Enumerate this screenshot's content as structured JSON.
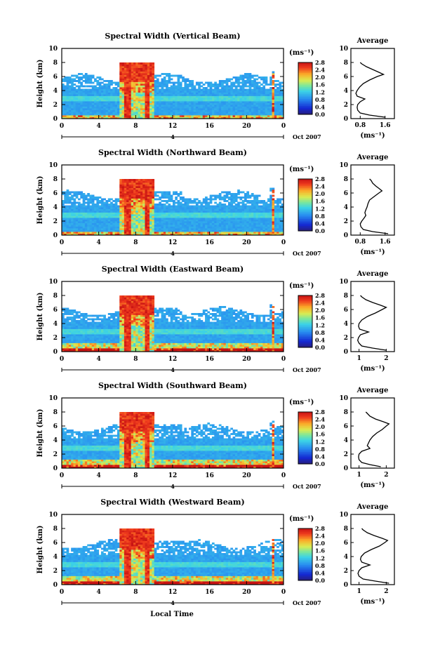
{
  "figure": {
    "x_axis_label": "Local Time",
    "date_label": "Oct 2007",
    "day_marker": "4",
    "avg_title": "Average",
    "cbar_unit": "(ms⁻¹)",
    "avg_unit": "(ms⁻¹)"
  },
  "chart_data": [
    {
      "type": "heatmap",
      "title": "Spectral Width (Vertical Beam)",
      "ylabel": "Height (km)",
      "xlabel": "Local Time",
      "x_ticks": [
        "0",
        "4",
        "8",
        "12",
        "16",
        "20",
        "0"
      ],
      "y_ticks": [
        "0",
        "2",
        "4",
        "6",
        "8",
        "10"
      ],
      "xlim": [
        0,
        24
      ],
      "ylim": [
        0,
        10
      ],
      "colorbar": {
        "label": "(ms⁻¹)",
        "ticks": [
          "0.0",
          "0.4",
          "0.8",
          "1.2",
          "1.6",
          "2.0",
          "2.4",
          "2.8"
        ],
        "range": [
          0,
          2.8
        ]
      },
      "average_profile": {
        "title": "Average",
        "xlabel": "(ms⁻¹)",
        "xticks": [
          "0.8",
          "1.6"
        ],
        "xlim": [
          0.5,
          1.9
        ],
        "ylim": [
          0,
          10
        ],
        "height": [
          0.2,
          0.5,
          0.8,
          1.2,
          1.6,
          2.0,
          2.4,
          2.8,
          3.2,
          3.6,
          4.0,
          4.5,
          5.0,
          5.5,
          6.0,
          6.3,
          6.6,
          7.0,
          7.4,
          7.8,
          8.0
        ],
        "value": [
          1.6,
          1.1,
          0.8,
          0.72,
          0.7,
          0.72,
          0.8,
          0.95,
          0.7,
          0.66,
          0.7,
          0.78,
          0.9,
          1.1,
          1.35,
          1.55,
          1.4,
          1.2,
          1.0,
          0.85,
          0.8
        ]
      }
    },
    {
      "type": "heatmap",
      "title": "Spectral Width (Northward Beam)",
      "ylabel": "Height (km)",
      "xlabel": "Local Time",
      "x_ticks": [
        "0",
        "4",
        "8",
        "12",
        "16",
        "20",
        "0"
      ],
      "y_ticks": [
        "0",
        "2",
        "4",
        "6",
        "8",
        "10"
      ],
      "xlim": [
        0,
        24
      ],
      "ylim": [
        0,
        10
      ],
      "colorbar": {
        "label": "(ms⁻¹)",
        "ticks": [
          "0.0",
          "0.4",
          "0.8",
          "1.2",
          "1.6",
          "2.0",
          "2.4",
          "2.8"
        ],
        "range": [
          0,
          2.8
        ]
      },
      "average_profile": {
        "title": "Average",
        "xlabel": "(ms⁻¹)",
        "xticks": [
          "0.8",
          "1.6"
        ],
        "xlim": [
          0.5,
          1.9
        ],
        "ylim": [
          0,
          10
        ],
        "height": [
          0.2,
          0.5,
          0.8,
          1.2,
          1.6,
          2.0,
          2.4,
          2.8,
          3.2,
          3.6,
          4.0,
          4.5,
          5.0,
          5.5,
          6.0,
          6.3,
          6.6,
          7.0,
          7.4,
          7.8,
          8.0
        ],
        "value": [
          1.7,
          1.2,
          0.9,
          0.82,
          0.8,
          0.85,
          0.92,
          0.98,
          0.95,
          0.98,
          1.02,
          1.05,
          1.1,
          1.25,
          1.4,
          1.5,
          1.42,
          1.3,
          1.2,
          1.15,
          1.1
        ]
      }
    },
    {
      "type": "heatmap",
      "title": "Spectral Width (Eastward Beam)",
      "ylabel": "Height (km)",
      "xlabel": "Local Time",
      "x_ticks": [
        "0",
        "4",
        "8",
        "12",
        "16",
        "20",
        "0"
      ],
      "y_ticks": [
        "0",
        "2",
        "4",
        "6",
        "8",
        "10"
      ],
      "xlim": [
        0,
        24
      ],
      "ylim": [
        0,
        10
      ],
      "colorbar": {
        "label": "(ms⁻¹)",
        "ticks": [
          "0.0",
          "0.4",
          "0.8",
          "1.2",
          "1.6",
          "2.0",
          "2.4",
          "2.8"
        ],
        "range": [
          0,
          2.8
        ]
      },
      "average_profile": {
        "title": "Average",
        "xlabel": "(ms⁻¹)",
        "xticks": [
          "1",
          "2"
        ],
        "xlim": [
          0.7,
          2.3
        ],
        "ylim": [
          0,
          10
        ],
        "height": [
          0.2,
          0.5,
          0.8,
          1.2,
          1.6,
          2.0,
          2.4,
          2.8,
          3.2,
          3.6,
          4.0,
          4.5,
          5.0,
          5.5,
          6.0,
          6.3,
          6.6,
          7.0,
          7.4,
          7.8,
          8.0
        ],
        "value": [
          2.0,
          1.5,
          1.1,
          1.0,
          0.95,
          0.98,
          1.05,
          1.35,
          1.02,
          0.98,
          1.0,
          1.1,
          1.3,
          1.6,
          1.85,
          2.0,
          1.8,
          1.5,
          1.25,
          1.1,
          1.05
        ]
      }
    },
    {
      "type": "heatmap",
      "title": "Spectral Width (Southward Beam)",
      "ylabel": "Height (km)",
      "xlabel": "Local Time",
      "x_ticks": [
        "0",
        "4",
        "8",
        "12",
        "16",
        "20",
        "0"
      ],
      "y_ticks": [
        "0",
        "2",
        "4",
        "6",
        "8",
        "10"
      ],
      "xlim": [
        0,
        24
      ],
      "ylim": [
        0,
        10
      ],
      "colorbar": {
        "label": "(ms⁻¹)",
        "ticks": [
          "0.0",
          "0.4",
          "0.8",
          "1.2",
          "1.6",
          "2.0",
          "2.4",
          "2.8"
        ],
        "range": [
          0,
          2.8
        ]
      },
      "average_profile": {
        "title": "Average",
        "xlabel": "(ms⁻¹)",
        "xticks": [
          "1",
          "2"
        ],
        "xlim": [
          0.7,
          2.3
        ],
        "ylim": [
          0,
          10
        ],
        "height": [
          0.2,
          0.5,
          0.8,
          1.2,
          1.6,
          2.0,
          2.4,
          2.8,
          3.2,
          3.6,
          4.0,
          4.5,
          5.0,
          5.5,
          6.0,
          6.3,
          6.6,
          7.0,
          7.4,
          7.8,
          8.0
        ],
        "value": [
          1.8,
          1.4,
          1.1,
          1.0,
          0.98,
          1.0,
          1.1,
          1.4,
          1.3,
          1.35,
          1.4,
          1.5,
          1.65,
          1.85,
          2.0,
          2.1,
          1.9,
          1.6,
          1.4,
          1.3,
          1.25
        ]
      }
    },
    {
      "type": "heatmap",
      "title": "Spectral Width (Westward Beam)",
      "ylabel": "Height (km)",
      "xlabel": "Local Time",
      "x_ticks": [
        "0",
        "4",
        "8",
        "12",
        "16",
        "20",
        "0"
      ],
      "y_ticks": [
        "0",
        "2",
        "4",
        "6",
        "8",
        "10"
      ],
      "xlim": [
        0,
        24
      ],
      "ylim": [
        0,
        10
      ],
      "colorbar": {
        "label": "(ms⁻¹)",
        "ticks": [
          "0.0",
          "0.4",
          "0.8",
          "1.2",
          "1.6",
          "2.0",
          "2.4",
          "2.8"
        ],
        "range": [
          0,
          2.8
        ]
      },
      "average_profile": {
        "title": "Average",
        "xlabel": "(ms⁻¹)",
        "xticks": [
          "1",
          "2"
        ],
        "xlim": [
          0.7,
          2.3
        ],
        "ylim": [
          0,
          10
        ],
        "height": [
          0.2,
          0.5,
          0.8,
          1.2,
          1.6,
          2.0,
          2.4,
          2.8,
          3.2,
          3.6,
          4.0,
          4.5,
          5.0,
          5.5,
          6.0,
          6.3,
          6.6,
          7.0,
          7.4,
          7.8,
          8.0
        ],
        "value": [
          2.1,
          1.6,
          1.15,
          1.0,
          0.96,
          1.0,
          1.1,
          1.4,
          1.1,
          1.05,
          1.08,
          1.2,
          1.45,
          1.75,
          1.95,
          2.05,
          1.85,
          1.55,
          1.3,
          1.15,
          1.1
        ]
      }
    }
  ]
}
